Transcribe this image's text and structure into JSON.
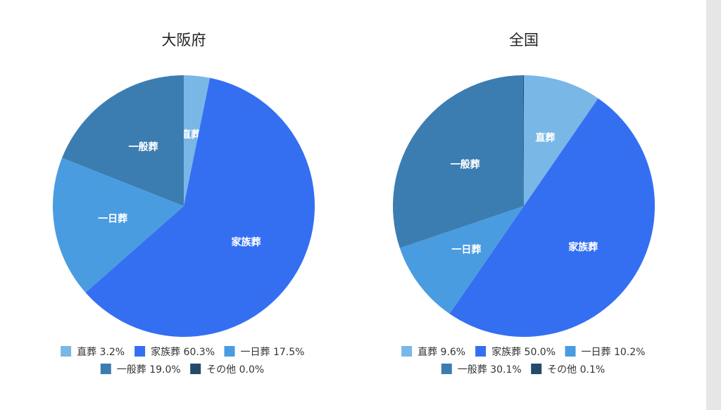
{
  "chart_data": [
    {
      "type": "pie",
      "title": "大阪府",
      "slices": [
        {
          "label": "直葬",
          "value": 3.2,
          "legend": "直葬 3.2%",
          "color": "#79b7e6"
        },
        {
          "label": "家族葬",
          "value": 60.3,
          "legend": "家族葬 60.3%",
          "color": "#346ff2"
        },
        {
          "label": "一日葬",
          "value": 17.5,
          "legend": "一日葬 17.5%",
          "color": "#4a9ce0"
        },
        {
          "label": "一般葬",
          "value": 19.0,
          "legend": "一般葬 19.0%",
          "color": "#3c7db1"
        },
        {
          "label": "その他",
          "value": 0.0,
          "legend": "その他 0.0%",
          "color": "#234a6b"
        }
      ],
      "legend_position": "bottom"
    },
    {
      "type": "pie",
      "title": "全国",
      "slices": [
        {
          "label": "直葬",
          "value": 9.6,
          "legend": "直葬 9.6%",
          "color": "#79b7e6"
        },
        {
          "label": "家族葬",
          "value": 50.0,
          "legend": "家族葬 50.0%",
          "color": "#346ff2"
        },
        {
          "label": "一日葬",
          "value": 10.2,
          "legend": "一日葬 10.2%",
          "color": "#4a9ce0"
        },
        {
          "label": "一般葬",
          "value": 30.1,
          "legend": "一般葬 30.1%",
          "color": "#3c7db1"
        },
        {
          "label": "その他",
          "value": 0.1,
          "legend": "その他 0.1%",
          "color": "#234a6b"
        }
      ],
      "legend_position": "bottom"
    }
  ]
}
